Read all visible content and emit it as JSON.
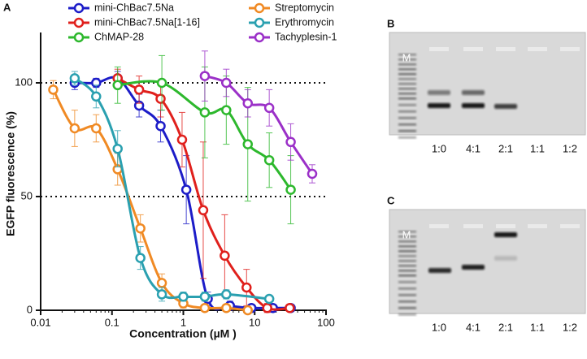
{
  "chart_data": {
    "type": "scatter",
    "panel": "A",
    "ylabel": "EGFP fluorescence (%)",
    "xlabel": "Concentration (µM )",
    "xlim": [
      0.01,
      100
    ],
    "xticks": [
      0.01,
      0.1,
      1,
      10,
      100
    ],
    "log_x": true,
    "ylim": [
      0,
      120
    ],
    "yticks": [
      0,
      50,
      100
    ],
    "reference_lines": [
      50,
      100
    ],
    "legend": "top",
    "series": [
      {
        "name": "mini-ChBac7.5Na",
        "color": "#1c1cc8",
        "x": [
          0.03,
          0.06,
          0.12,
          0.24,
          0.48,
          1.1,
          2.2,
          4.5,
          9,
          18,
          32
        ],
        "values": [
          100,
          100,
          102,
          90,
          81,
          53,
          5,
          2,
          1,
          1,
          1
        ],
        "errors": [
          3,
          2,
          3,
          5,
          7,
          15,
          3,
          2,
          1,
          1,
          1
        ]
      },
      {
        "name": "mini-ChBac7.5Na[1-16]",
        "color": "#e0201c",
        "x": [
          0.12,
          0.24,
          0.48,
          0.96,
          1.9,
          3.8,
          7.7,
          15,
          31
        ],
        "values": [
          102,
          97,
          93,
          75,
          44,
          24,
          10,
          1,
          1
        ],
        "errors": [
          4,
          6,
          8,
          12,
          30,
          18,
          8,
          2,
          1
        ]
      },
      {
        "name": "ChMAP-28",
        "color": "#2db82d",
        "x": [
          0.12,
          0.5,
          2,
          4,
          8,
          16,
          32
        ],
        "values": [
          99,
          100,
          87,
          88,
          73,
          66,
          53
        ],
        "errors": [
          8,
          12,
          20,
          15,
          25,
          12,
          15
        ]
      },
      {
        "name": "Streptomycin",
        "color": "#f08a24",
        "x": [
          0.015,
          0.03,
          0.06,
          0.12,
          0.25,
          0.5,
          1,
          2,
          4,
          8
        ],
        "values": [
          97,
          80,
          80,
          62,
          36,
          12,
          3,
          1,
          1,
          0
        ],
        "errors": [
          4,
          8,
          6,
          7,
          6,
          4,
          2,
          1,
          1,
          1
        ]
      },
      {
        "name": "Erythromycin",
        "color": "#2aa0b0",
        "x": [
          0.03,
          0.06,
          0.12,
          0.25,
          0.5,
          1,
          2,
          4,
          16
        ],
        "values": [
          102,
          94,
          71,
          23,
          7,
          6,
          6,
          7,
          5
        ],
        "errors": [
          3,
          5,
          8,
          5,
          3,
          2,
          2,
          2,
          1
        ]
      },
      {
        "name": "Tachyplesin-1",
        "color": "#9b30c8",
        "x": [
          2,
          4,
          8,
          16,
          32,
          64
        ],
        "values": [
          103,
          100,
          91,
          89,
          74,
          60
        ],
        "errors": [
          11,
          6,
          6,
          8,
          8,
          4
        ]
      }
    ]
  },
  "gels": [
    {
      "panel": "B",
      "marker": "M",
      "lanes": [
        "1:0",
        "4:1",
        "2:1",
        "1:1",
        "1:2"
      ]
    },
    {
      "panel": "C",
      "marker": "M",
      "lanes": [
        "1:0",
        "4:1",
        "2:1",
        "1:1",
        "1:2"
      ]
    }
  ]
}
